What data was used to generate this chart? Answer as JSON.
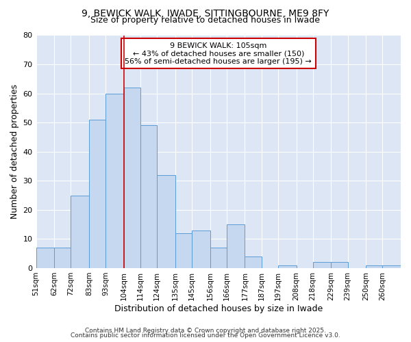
{
  "title_line1": "9, BEWICK WALK, IWADE, SITTINGBOURNE, ME9 8FY",
  "title_line2": "Size of property relative to detached houses in Iwade",
  "xlabel": "Distribution of detached houses by size in Iwade",
  "ylabel": "Number of detached properties",
  "bar_labels": [
    "51sqm",
    "62sqm",
    "72sqm",
    "83sqm",
    "93sqm",
    "104sqm",
    "114sqm",
    "124sqm",
    "135sqm",
    "145sqm",
    "156sqm",
    "166sqm",
    "177sqm",
    "187sqm",
    "197sqm",
    "208sqm",
    "218sqm",
    "229sqm",
    "239sqm",
    "250sqm",
    "260sqm"
  ],
  "bar_values": [
    7,
    7,
    25,
    51,
    60,
    62,
    49,
    32,
    12,
    13,
    7,
    15,
    4,
    0,
    1,
    0,
    2,
    2,
    0,
    1,
    1
  ],
  "bar_color": "#c5d8f0",
  "bar_edgecolor": "#5b9bd5",
  "vline_x": 104,
  "bin_edges": [
    51,
    62,
    72,
    83,
    93,
    104,
    114,
    124,
    135,
    145,
    156,
    166,
    177,
    187,
    197,
    208,
    218,
    229,
    239,
    250,
    260,
    271
  ],
  "annotation_text": "9 BEWICK WALK: 105sqm\n← 43% of detached houses are smaller (150)\n56% of semi-detached houses are larger (195) →",
  "annotation_box_color": "#ffffff",
  "annotation_box_edgecolor": "#cc0000",
  "ylim": [
    0,
    80
  ],
  "yticks": [
    0,
    10,
    20,
    30,
    40,
    50,
    60,
    70,
    80
  ],
  "plot_bg_color": "#dce6f5",
  "fig_bg_color": "#ffffff",
  "grid_color": "#ffffff",
  "footer1": "Contains HM Land Registry data © Crown copyright and database right 2025.",
  "footer2": "Contains public sector information licensed under the Open Government Licence v3.0.",
  "vline_color": "#cc0000",
  "title_fontsize": 10,
  "subtitle_fontsize": 9
}
